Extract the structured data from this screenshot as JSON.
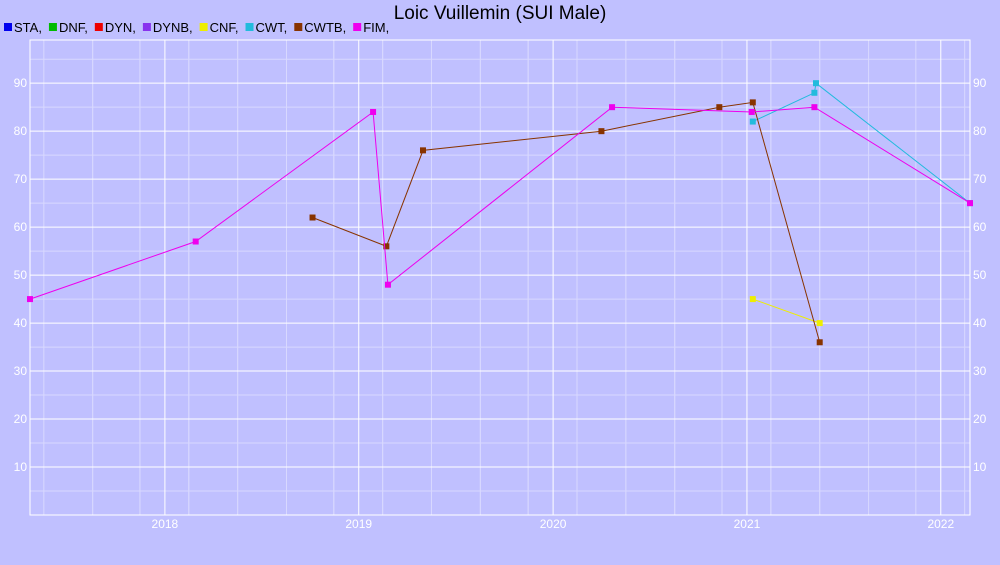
{
  "chart_data": {
    "type": "line",
    "title": "Loic Vuillemin (SUI Male)",
    "xlabel": "",
    "ylabel": "",
    "xlim": [
      "2017-10-20",
      "2022-08-25"
    ],
    "ylim": [
      0,
      99
    ],
    "x_ticks": [
      "2018",
      "2019",
      "2020",
      "2021",
      "2022"
    ],
    "y_ticks": [
      "10",
      "20",
      "30",
      "40",
      "50",
      "60",
      "70",
      "80",
      "90"
    ],
    "grid": true,
    "legend_position": "top-left",
    "legend": [
      {
        "label": "STA,",
        "color": "#0000ee"
      },
      {
        "label": "DNF,",
        "color": "#00bb00"
      },
      {
        "label": "DYN,",
        "color": "#ee0000"
      },
      {
        "label": "DYNB,",
        "color": "#8833ee"
      },
      {
        "label": "CNF,",
        "color": "#eeee00"
      },
      {
        "label": "CWT,",
        "color": "#22bbdd"
      },
      {
        "label": "CWTB,",
        "color": "#883300"
      },
      {
        "label": "FIM,",
        "color": "#ee00ee"
      }
    ],
    "series": [
      {
        "name": "CNF",
        "color": "#eeee00",
        "points": [
          {
            "x": "2021-07-12",
            "y": 45
          },
          {
            "x": "2021-11-15",
            "y": 40
          }
        ]
      },
      {
        "name": "CWT",
        "color": "#22bbdd",
        "points": [
          {
            "x": "2021-07-12",
            "y": 82
          },
          {
            "x": "2021-11-05",
            "y": 88
          },
          {
            "x": "2021-11-08",
            "y": 90
          },
          {
            "x": "2022-08-25",
            "y": 65
          }
        ]
      },
      {
        "name": "CWTB",
        "color": "#883300",
        "points": [
          {
            "x": "2019-04-05",
            "y": 62
          },
          {
            "x": "2019-08-22",
            "y": 56
          },
          {
            "x": "2019-10-30",
            "y": 76
          },
          {
            "x": "2020-09-30",
            "y": 80
          },
          {
            "x": "2021-05-10",
            "y": 85
          },
          {
            "x": "2021-07-12",
            "y": 86
          },
          {
            "x": "2021-11-15",
            "y": 36
          }
        ]
      },
      {
        "name": "FIM",
        "color": "#ee00ee",
        "points": [
          {
            "x": "2017-10-20",
            "y": 45
          },
          {
            "x": "2018-08-28",
            "y": 57
          },
          {
            "x": "2019-07-28",
            "y": 84
          },
          {
            "x": "2019-08-25",
            "y": 48
          },
          {
            "x": "2020-10-20",
            "y": 85
          },
          {
            "x": "2021-07-10",
            "y": 84
          },
          {
            "x": "2021-11-05",
            "y": 85
          },
          {
            "x": "2022-08-25",
            "y": 65
          }
        ]
      }
    ]
  }
}
